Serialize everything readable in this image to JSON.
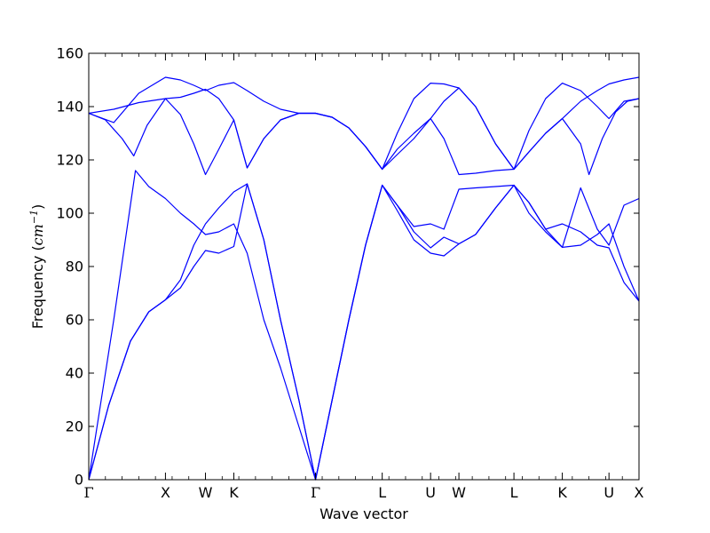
{
  "chart_data": {
    "type": "line",
    "title": "",
    "xlabel": "Wave vector",
    "ylabel": {
      "text": "Frequency (",
      "unit_base": "cm",
      "unit_exponent": "−1",
      "close": ")"
    },
    "ylim": [
      0,
      160
    ],
    "yticks": [
      0,
      20,
      40,
      60,
      80,
      100,
      120,
      140,
      160
    ],
    "xlim": [
      0,
      33
    ],
    "minor_ticks_per_unit": 1,
    "grid": false,
    "line_color": "#0000ff",
    "high_symmetry_points": [
      {
        "label": "Γ",
        "x": 0
      },
      {
        "label": "X",
        "x": 4.6
      },
      {
        "label": "W",
        "x": 7.0
      },
      {
        "label": "K",
        "x": 8.7
      },
      {
        "label": "Γ",
        "x": 13.6
      },
      {
        "label": "L",
        "x": 17.6
      },
      {
        "label": "U",
        "x": 20.5
      },
      {
        "label": "W",
        "x": 22.2
      },
      {
        "label": "L",
        "x": 25.5
      },
      {
        "label": "K",
        "x": 28.4
      },
      {
        "label": "U",
        "x": 31.2
      },
      {
        "label": "X",
        "x": 33.0
      }
    ],
    "series": [
      {
        "points": [
          [
            0,
            0
          ],
          [
            1.2,
            28
          ],
          [
            2.5,
            52
          ],
          [
            3.6,
            63
          ],
          [
            4.6,
            67.5
          ],
          [
            5.5,
            75
          ],
          [
            6.3,
            88
          ],
          [
            7.0,
            96
          ],
          [
            7.8,
            102
          ],
          [
            8.7,
            108
          ],
          [
            9.5,
            111
          ],
          [
            10.5,
            90
          ],
          [
            11.5,
            60
          ],
          [
            12.6,
            30
          ],
          [
            13.6,
            0
          ],
          [
            14.6,
            30
          ],
          [
            15.6,
            60
          ],
          [
            16.6,
            88
          ],
          [
            17.6,
            110.5
          ],
          [
            18.5,
            103
          ],
          [
            19.5,
            93
          ],
          [
            20.5,
            87
          ],
          [
            21.3,
            91
          ],
          [
            22.2,
            88.5
          ],
          [
            23.2,
            92
          ],
          [
            24.4,
            102
          ],
          [
            25.5,
            110.5
          ],
          [
            26.4,
            104
          ],
          [
            27.4,
            94
          ],
          [
            28.4,
            87.2
          ],
          [
            29.5,
            88
          ],
          [
            30.5,
            92
          ],
          [
            31.2,
            96
          ],
          [
            32.1,
            80
          ],
          [
            33.0,
            67
          ]
        ]
      },
      {
        "points": [
          [
            0,
            0
          ],
          [
            1.2,
            28
          ],
          [
            2.5,
            52
          ],
          [
            3.6,
            63
          ],
          [
            4.6,
            67.5
          ],
          [
            5.5,
            72
          ],
          [
            6.3,
            80
          ],
          [
            7.0,
            86
          ],
          [
            7.8,
            85
          ],
          [
            8.7,
            87.5
          ],
          [
            9.5,
            111
          ],
          [
            10.5,
            90
          ],
          [
            11.5,
            60
          ],
          [
            12.6,
            30
          ],
          [
            13.6,
            0
          ],
          [
            14.6,
            30
          ],
          [
            15.6,
            60
          ],
          [
            16.6,
            88
          ],
          [
            17.6,
            110.5
          ],
          [
            18.5,
            101
          ],
          [
            19.5,
            90
          ],
          [
            20.5,
            85
          ],
          [
            21.3,
            84
          ],
          [
            22.2,
            88.5
          ],
          [
            23.2,
            92
          ],
          [
            24.4,
            102
          ],
          [
            25.5,
            110.5
          ],
          [
            26.4,
            104
          ],
          [
            27.4,
            94
          ],
          [
            28.4,
            96
          ],
          [
            29.5,
            93
          ],
          [
            30.5,
            88
          ],
          [
            31.2,
            87
          ],
          [
            32.1,
            74
          ],
          [
            33.0,
            67
          ]
        ]
      },
      {
        "points": [
          [
            0,
            0
          ],
          [
            1.5,
            60
          ],
          [
            2.8,
            116
          ],
          [
            3.6,
            110
          ],
          [
            4.6,
            105.5
          ],
          [
            5.5,
            100
          ],
          [
            6.3,
            96
          ],
          [
            7.0,
            92
          ],
          [
            7.8,
            93
          ],
          [
            8.7,
            96
          ],
          [
            9.5,
            85
          ],
          [
            10.5,
            60
          ],
          [
            11.5,
            42
          ],
          [
            12.6,
            20
          ],
          [
            13.6,
            0
          ],
          [
            14.6,
            30
          ],
          [
            15.6,
            60
          ],
          [
            16.6,
            88
          ],
          [
            17.6,
            110.5
          ],
          [
            18.5,
            103
          ],
          [
            19.5,
            95
          ],
          [
            20.5,
            96
          ],
          [
            21.3,
            94
          ],
          [
            22.2,
            109
          ],
          [
            23.2,
            109.5
          ],
          [
            24.4,
            110
          ],
          [
            25.5,
            110.5
          ],
          [
            26.4,
            100
          ],
          [
            27.4,
            93
          ],
          [
            28.4,
            87.2
          ],
          [
            29.5,
            109.5
          ],
          [
            30.5,
            94
          ],
          [
            31.2,
            88
          ],
          [
            32.1,
            103
          ],
          [
            33.0,
            105.5
          ]
        ]
      },
      {
        "points": [
          [
            0,
            137.5
          ],
          [
            1.0,
            135
          ],
          [
            2.0,
            128
          ],
          [
            2.7,
            121.5
          ],
          [
            3.5,
            133
          ],
          [
            4.6,
            143
          ],
          [
            5.5,
            137
          ],
          [
            6.3,
            126
          ],
          [
            7.0,
            114.5
          ],
          [
            7.8,
            124
          ],
          [
            8.7,
            135
          ],
          [
            9.5,
            117
          ],
          [
            10.5,
            128
          ],
          [
            11.5,
            135
          ],
          [
            12.6,
            137.5
          ],
          [
            13.6,
            137.5
          ],
          [
            14.6,
            136
          ],
          [
            15.6,
            132
          ],
          [
            16.6,
            125
          ],
          [
            17.6,
            116.5
          ],
          [
            18.5,
            122
          ],
          [
            19.5,
            128
          ],
          [
            20.5,
            135.5
          ],
          [
            21.3,
            128
          ],
          [
            22.2,
            114.5
          ],
          [
            23.2,
            115
          ],
          [
            24.4,
            116
          ],
          [
            25.5,
            116.5
          ],
          [
            26.4,
            123
          ],
          [
            27.4,
            130
          ],
          [
            28.4,
            135.5
          ],
          [
            29.5,
            126
          ],
          [
            30.0,
            114.5
          ],
          [
            30.8,
            128
          ],
          [
            31.6,
            138
          ],
          [
            32.3,
            142
          ],
          [
            33.0,
            143
          ]
        ]
      },
      {
        "points": [
          [
            0,
            137.5
          ],
          [
            1.5,
            139
          ],
          [
            3.0,
            141.5
          ],
          [
            4.6,
            143
          ],
          [
            5.5,
            143.5
          ],
          [
            6.3,
            145
          ],
          [
            7.0,
            146.5
          ],
          [
            7.8,
            143
          ],
          [
            8.7,
            135
          ],
          [
            9.5,
            117
          ],
          [
            10.5,
            128
          ],
          [
            11.5,
            135
          ],
          [
            12.6,
            137.5
          ],
          [
            13.6,
            137.5
          ],
          [
            14.6,
            136
          ],
          [
            15.6,
            132
          ],
          [
            16.6,
            125
          ],
          [
            17.6,
            116.5
          ],
          [
            18.5,
            124
          ],
          [
            19.5,
            130
          ],
          [
            20.5,
            135.5
          ],
          [
            21.3,
            142
          ],
          [
            22.2,
            147
          ],
          [
            23.2,
            140
          ],
          [
            24.4,
            126
          ],
          [
            25.5,
            116.5
          ],
          [
            26.4,
            123
          ],
          [
            27.4,
            130
          ],
          [
            28.4,
            135.5
          ],
          [
            29.5,
            142
          ],
          [
            30.5,
            146
          ],
          [
            31.2,
            148.5
          ],
          [
            32.1,
            150
          ],
          [
            33.0,
            151
          ]
        ]
      },
      {
        "points": [
          [
            0,
            137.5
          ],
          [
            1.5,
            134
          ],
          [
            3.0,
            145
          ],
          [
            4.6,
            151
          ],
          [
            5.5,
            150
          ],
          [
            6.3,
            148
          ],
          [
            7.0,
            146
          ],
          [
            7.8,
            148
          ],
          [
            8.7,
            149
          ],
          [
            9.5,
            146
          ],
          [
            10.5,
            142
          ],
          [
            11.5,
            139
          ],
          [
            12.6,
            137.5
          ],
          [
            13.6,
            137.5
          ],
          [
            14.6,
            136
          ],
          [
            15.6,
            132
          ],
          [
            16.6,
            125
          ],
          [
            17.6,
            116.5
          ],
          [
            18.5,
            130
          ],
          [
            19.5,
            143
          ],
          [
            20.5,
            148.8
          ],
          [
            21.3,
            148.5
          ],
          [
            22.2,
            147
          ],
          [
            23.2,
            140
          ],
          [
            24.4,
            126
          ],
          [
            25.5,
            116.5
          ],
          [
            26.4,
            131
          ],
          [
            27.4,
            143
          ],
          [
            28.4,
            148.8
          ],
          [
            29.5,
            146
          ],
          [
            30.5,
            140
          ],
          [
            31.2,
            135.5
          ],
          [
            32.1,
            142
          ],
          [
            33.0,
            143
          ]
        ]
      }
    ]
  }
}
